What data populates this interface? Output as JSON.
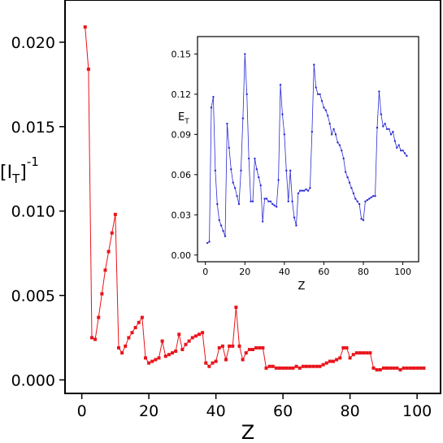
{
  "chart_data": [
    {
      "type": "line",
      "xlabel": "Z",
      "ylabel": "[I_T]^-1",
      "ylabel_parts": {
        "open": "[I",
        "sub": "T",
        "close": "]",
        "sup": "-1"
      },
      "xlim": [
        -5,
        107
      ],
      "ylim": [
        -0.0008,
        0.0225
      ],
      "xticks": [
        0,
        20,
        40,
        60,
        80,
        100
      ],
      "yticks": [
        0.0,
        0.005,
        0.01,
        0.015,
        0.02
      ],
      "ytick_labels": [
        "0.000",
        "0.005",
        "0.010",
        "0.015",
        "0.020"
      ],
      "color": "#e8141a",
      "marker": "square",
      "series": [
        {
          "x": [
            1,
            2,
            3,
            4,
            5,
            6,
            7,
            8,
            9,
            10,
            11,
            12,
            13,
            14,
            15,
            16,
            17,
            18,
            19,
            20,
            21,
            22,
            23,
            24,
            25,
            26,
            27,
            28,
            29,
            30,
            31,
            32,
            33,
            34,
            35,
            36,
            37,
            38,
            39,
            40,
            41,
            42,
            43,
            44,
            45,
            46,
            47,
            48,
            49,
            50,
            51,
            52,
            53,
            54,
            55,
            56,
            57,
            58,
            59,
            60,
            61,
            62,
            63,
            64,
            65,
            66,
            67,
            68,
            69,
            70,
            71,
            72,
            73,
            74,
            75,
            76,
            77,
            78,
            79,
            80,
            81,
            82,
            83,
            84,
            85,
            86,
            87,
            88,
            89,
            90,
            91,
            92,
            93,
            94,
            95,
            96,
            97,
            98,
            99,
            100,
            101,
            102
          ],
          "y": [
            0.0209,
            0.0184,
            0.0025,
            0.0024,
            0.0037,
            0.0051,
            0.0065,
            0.0076,
            0.0087,
            0.0098,
            0.0019,
            0.0016,
            0.002,
            0.0025,
            0.0028,
            0.0031,
            0.0034,
            0.0037,
            0.0013,
            0.001,
            0.0011,
            0.0012,
            0.0013,
            0.0023,
            0.0014,
            0.0015,
            0.0016,
            0.0017,
            0.0027,
            0.0018,
            0.0021,
            0.0023,
            0.0025,
            0.0026,
            0.0027,
            0.0028,
            0.001,
            0.0008,
            0.001,
            0.0011,
            0.0019,
            0.002,
            0.0012,
            0.002,
            0.002,
            0.0043,
            0.002,
            0.0012,
            0.0016,
            0.0018,
            0.0018,
            0.0019,
            0.0019,
            0.0019,
            0.0007,
            0.0008,
            0.0008,
            0.0007,
            0.0007,
            0.0007,
            0.0007,
            0.0007,
            0.0007,
            0.0008,
            0.0007,
            0.0008,
            0.0008,
            0.0008,
            0.0008,
            0.0008,
            0.0008,
            0.0009,
            0.001,
            0.0011,
            0.0011,
            0.0012,
            0.0013,
            0.0019,
            0.0019,
            0.0013,
            0.0015,
            0.0016,
            0.0016,
            0.0016,
            0.0016,
            0.0016,
            0.0007,
            0.0006,
            0.0006,
            0.0007,
            0.0007,
            0.0007,
            0.0007,
            0.0007,
            0.0006,
            0.0007,
            0.0007,
            0.0007,
            0.0007,
            0.0007,
            0.0007,
            0.0007
          ]
        }
      ]
    },
    {
      "type": "line",
      "xlabel": "Z",
      "ylabel": "E_T",
      "ylabel_parts": {
        "main": "E",
        "sub": "T"
      },
      "xlim": [
        -4,
        108
      ],
      "ylim": [
        -0.005,
        0.163
      ],
      "xticks": [
        0,
        20,
        40,
        60,
        80,
        100
      ],
      "yticks": [
        0.0,
        0.03,
        0.06,
        0.09,
        0.12,
        0.15
      ],
      "ytick_labels": [
        "0.00",
        "0.03",
        "0.06",
        "0.09",
        "0.12",
        "0.15"
      ],
      "color": "#2b2bd6",
      "marker": "dot",
      "series": [
        {
          "x": [
            1,
            2,
            3,
            4,
            5,
            6,
            7,
            8,
            9,
            10,
            11,
            12,
            13,
            14,
            15,
            16,
            17,
            18,
            19,
            20,
            21,
            22,
            23,
            24,
            25,
            26,
            27,
            28,
            29,
            30,
            31,
            32,
            33,
            34,
            35,
            36,
            37,
            38,
            39,
            40,
            41,
            42,
            43,
            44,
            45,
            46,
            47,
            48,
            49,
            50,
            51,
            52,
            53,
            54,
            55,
            56,
            57,
            58,
            59,
            60,
            61,
            62,
            63,
            64,
            65,
            66,
            67,
            68,
            69,
            70,
            71,
            72,
            73,
            74,
            75,
            76,
            77,
            78,
            79,
            80,
            81,
            82,
            83,
            84,
            85,
            86,
            87,
            88,
            89,
            90,
            91,
            92,
            93,
            94,
            95,
            96,
            97,
            98,
            99,
            100,
            101,
            102
          ],
          "y": [
            0.009,
            0.01,
            0.11,
            0.118,
            0.063,
            0.038,
            0.026,
            0.022,
            0.018,
            0.014,
            0.098,
            0.08,
            0.064,
            0.054,
            0.05,
            0.044,
            0.038,
            0.063,
            0.102,
            0.15,
            0.12,
            0.072,
            0.04,
            0.04,
            0.072,
            0.064,
            0.058,
            0.052,
            0.025,
            0.042,
            0.042,
            0.04,
            0.04,
            0.038,
            0.037,
            0.036,
            0.056,
            0.127,
            0.105,
            0.09,
            0.063,
            0.04,
            0.063,
            0.04,
            0.028,
            0.022,
            0.046,
            0.048,
            0.048,
            0.048,
            0.049,
            0.048,
            0.05,
            0.092,
            0.142,
            0.125,
            0.12,
            0.12,
            0.115,
            0.11,
            0.108,
            0.104,
            0.098,
            0.09,
            0.094,
            0.09,
            0.084,
            0.082,
            0.078,
            0.072,
            0.062,
            0.058,
            0.054,
            0.05,
            0.046,
            0.042,
            0.04,
            0.038,
            0.027,
            0.026,
            0.04,
            0.041,
            0.042,
            0.043,
            0.044,
            0.044,
            0.095,
            0.122,
            0.105,
            0.096,
            0.098,
            0.094,
            0.094,
            0.09,
            0.092,
            0.085,
            0.08,
            0.082,
            0.078,
            0.078,
            0.076,
            0.074
          ]
        }
      ]
    }
  ]
}
